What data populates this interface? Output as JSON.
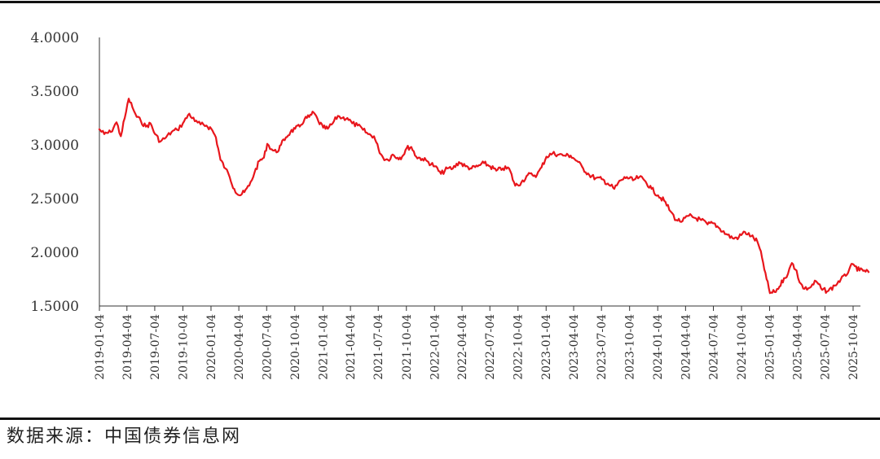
{
  "chart_data": {
    "type": "line",
    "title": "",
    "xlabel": "",
    "ylabel": "",
    "ylim": [
      1.5,
      4.0
    ],
    "y_ticks": [
      "4.0000",
      "3.5000",
      "3.0000",
      "2.5000",
      "2.0000",
      "1.5000"
    ],
    "x_ticks": [
      "2019-01-04",
      "2019-04-04",
      "2019-07-04",
      "2019-10-04",
      "2020-01-04",
      "2020-04-04",
      "2020-07-04",
      "2020-10-04",
      "2021-01-04",
      "2021-04-04",
      "2021-07-04",
      "2021-10-04",
      "2022-01-04",
      "2022-04-04",
      "2022-07-04",
      "2022-10-04",
      "2023-01-04",
      "2023-04-04",
      "2023-07-04",
      "2023-10-04",
      "2024-01-04",
      "2024-04-04",
      "2024-07-04",
      "2024-10-04",
      "2025-01-04",
      "2025-04-04",
      "2025-07-04",
      "2025-10-04"
    ],
    "grid": false,
    "legend": "none",
    "color": "#e8161c",
    "series": [
      {
        "x": [
          "2019-01-02",
          "2019-01-20",
          "2019-02-10",
          "2019-03-01",
          "2019-03-15",
          "2019-03-28",
          "2019-04-10",
          "2019-04-22",
          "2019-05-06",
          "2019-05-20",
          "2019-06-05",
          "2019-06-20",
          "2019-07-05",
          "2019-07-22",
          "2019-08-10",
          "2019-08-28",
          "2019-09-15",
          "2019-10-04",
          "2019-10-25",
          "2019-11-12",
          "2019-12-01",
          "2019-12-20",
          "2020-01-05",
          "2020-01-20",
          "2020-02-04",
          "2020-02-20",
          "2020-03-05",
          "2020-03-20",
          "2020-04-06",
          "2020-04-22",
          "2020-05-08",
          "2020-05-25",
          "2020-06-10",
          "2020-06-25",
          "2020-07-06",
          "2020-07-20",
          "2020-08-05",
          "2020-08-20",
          "2020-09-05",
          "2020-09-20",
          "2020-10-05",
          "2020-10-20",
          "2020-11-05",
          "2020-11-20",
          "2020-12-05",
          "2020-12-20",
          "2021-01-05",
          "2021-01-20",
          "2021-02-05",
          "2021-02-22",
          "2021-03-08",
          "2021-03-25",
          "2021-04-10",
          "2021-04-28",
          "2021-05-15",
          "2021-06-01",
          "2021-06-20",
          "2021-07-05",
          "2021-07-20",
          "2021-08-05",
          "2021-08-20",
          "2021-09-05",
          "2021-09-20",
          "2021-10-05",
          "2021-10-20",
          "2021-11-05",
          "2021-11-25",
          "2021-12-15",
          "2022-01-05",
          "2022-01-25",
          "2022-02-15",
          "2022-03-05",
          "2022-03-25",
          "2022-04-15",
          "2022-05-05",
          "2022-05-25",
          "2022-06-15",
          "2022-07-05",
          "2022-07-25",
          "2022-08-15",
          "2022-09-05",
          "2022-09-25",
          "2022-10-15",
          "2022-11-05",
          "2022-11-20",
          "2022-12-05",
          "2022-12-20",
          "2023-01-05",
          "2023-01-25",
          "2023-02-15",
          "2023-03-05",
          "2023-03-25",
          "2023-04-15",
          "2023-05-05",
          "2023-05-25",
          "2023-06-15",
          "2023-07-05",
          "2023-07-25",
          "2023-08-15",
          "2023-09-05",
          "2023-09-25",
          "2023-10-15",
          "2023-11-05",
          "2023-11-25",
          "2023-12-15",
          "2024-01-05",
          "2024-01-25",
          "2024-02-15",
          "2024-03-05",
          "2024-03-25",
          "2024-04-15",
          "2024-05-05",
          "2024-05-25",
          "2024-06-15",
          "2024-07-05",
          "2024-07-25",
          "2024-08-15",
          "2024-09-05",
          "2024-09-25",
          "2024-10-15",
          "2024-11-05",
          "2024-11-25",
          "2024-12-10",
          "2024-12-25",
          "2025-01-05",
          "2025-01-20",
          "2025-02-05",
          "2025-02-20",
          "2025-03-05",
          "2025-03-18",
          "2025-04-02",
          "2025-04-12",
          "2025-04-28",
          "2025-05-15",
          "2025-06-05",
          "2025-06-25",
          "2025-07-15",
          "2025-08-05",
          "2025-08-25",
          "2025-09-10",
          "2025-09-25",
          "2025-10-10",
          "2025-10-25",
          "2025-11-10",
          "2025-11-25"
        ],
        "y": [
          3.15,
          3.1,
          3.12,
          3.21,
          3.08,
          3.25,
          3.43,
          3.35,
          3.26,
          3.22,
          3.17,
          3.2,
          3.1,
          3.03,
          3.07,
          3.12,
          3.14,
          3.2,
          3.29,
          3.22,
          3.19,
          3.18,
          3.15,
          3.07,
          2.86,
          2.78,
          2.7,
          2.59,
          2.53,
          2.56,
          2.62,
          2.74,
          2.85,
          2.88,
          3.01,
          2.96,
          2.93,
          3.0,
          3.07,
          3.12,
          3.15,
          3.17,
          3.24,
          3.26,
          3.3,
          3.22,
          3.16,
          3.15,
          3.2,
          3.27,
          3.25,
          3.25,
          3.2,
          3.18,
          3.14,
          3.1,
          3.08,
          2.96,
          2.88,
          2.86,
          2.91,
          2.88,
          2.89,
          2.97,
          2.98,
          2.89,
          2.87,
          2.84,
          2.8,
          2.73,
          2.78,
          2.78,
          2.84,
          2.8,
          2.78,
          2.8,
          2.83,
          2.8,
          2.76,
          2.78,
          2.78,
          2.62,
          2.65,
          2.72,
          2.72,
          2.72,
          2.79,
          2.89,
          2.92,
          2.91,
          2.9,
          2.9,
          2.85,
          2.78,
          2.72,
          2.69,
          2.68,
          2.64,
          2.59,
          2.67,
          2.7,
          2.67,
          2.7,
          2.66,
          2.59,
          2.53,
          2.48,
          2.38,
          2.3,
          2.29,
          2.34,
          2.32,
          2.3,
          2.26,
          2.27,
          2.22,
          2.17,
          2.13,
          2.14,
          2.19,
          2.15,
          2.1,
          1.95,
          1.75,
          1.62,
          1.63,
          1.68,
          1.76,
          1.8,
          1.9,
          1.83,
          1.72,
          1.66,
          1.67,
          1.73,
          1.65,
          1.64,
          1.69,
          1.75,
          1.78,
          1.87,
          1.87,
          1.83,
          1.83,
          1.81
        ]
      }
    ]
  },
  "source_text": "数据来源：中国债券信息网"
}
